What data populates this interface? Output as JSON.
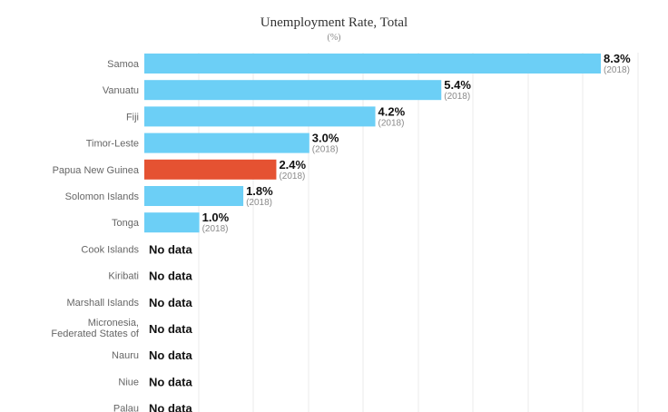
{
  "chart_data": {
    "type": "bar",
    "orientation": "horizontal",
    "title": "Unemployment Rate, Total",
    "subtitle": "(%)",
    "categories": [
      "Samoa",
      "Vanuatu",
      "Fiji",
      "Timor-Leste",
      "Papua New Guinea",
      "Solomon Islands",
      "Tonga",
      "Cook Islands",
      "Kiribati",
      "Marshall Islands",
      "Micronesia, Federated States of",
      "Nauru",
      "Niue",
      "Palau"
    ],
    "values": [
      8.3,
      5.4,
      4.2,
      3.0,
      2.4,
      1.8,
      1.0,
      null,
      null,
      null,
      null,
      null,
      null,
      null
    ],
    "value_labels": [
      "8.3%",
      "5.4%",
      "4.2%",
      "3.0%",
      "2.4%",
      "1.8%",
      "1.0%",
      "No data",
      "No data",
      "No data",
      "No data",
      "No data",
      "No data",
      "No data"
    ],
    "years": [
      "(2018)",
      "(2018)",
      "(2018)",
      "(2018)",
      "(2018)",
      "(2018)",
      "(2018)",
      "",
      "",
      "",
      "",
      "",
      "",
      ""
    ],
    "highlight": "Papua New Guinea",
    "xlim": [
      0,
      8.3
    ],
    "grid": true,
    "colors": {
      "bar": "#6ccff6",
      "highlight": "#e55232",
      "grid": "#ebebeb"
    }
  }
}
